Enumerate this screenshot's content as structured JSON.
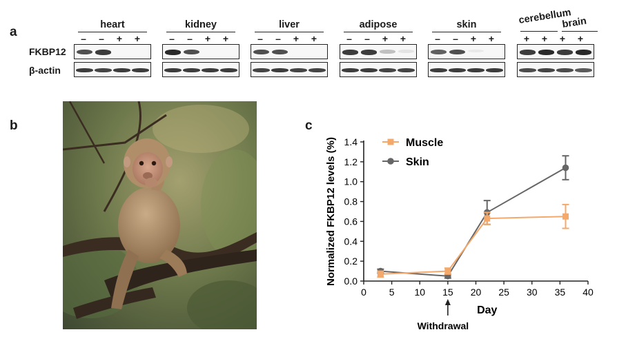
{
  "figure": {
    "panel_labels": {
      "a": "a",
      "b": "b",
      "c": "c"
    }
  },
  "blot": {
    "row_labels": {
      "fkbp12": "FKBP12",
      "actin": "β-actin"
    },
    "tissues": [
      {
        "name": "heart",
        "signs": [
          "–",
          "–",
          "+",
          "+"
        ],
        "fkbp12": [
          0.85,
          0.9,
          0.0,
          0.0
        ],
        "actin": [
          0.8,
          0.75,
          0.8,
          0.8
        ]
      },
      {
        "name": "kidney",
        "signs": [
          "–",
          "–",
          "+",
          "+"
        ],
        "fkbp12": [
          0.95,
          0.85,
          0.0,
          0.0
        ],
        "actin": [
          0.8,
          0.8,
          0.8,
          0.8
        ]
      },
      {
        "name": "liver",
        "signs": [
          "–",
          "–",
          "+",
          "+"
        ],
        "fkbp12": [
          0.85,
          0.85,
          0.0,
          0.0
        ],
        "actin": [
          0.75,
          0.8,
          0.75,
          0.75
        ]
      },
      {
        "name": "adipose",
        "signs": [
          "–",
          "–",
          "+",
          "+"
        ],
        "fkbp12": [
          0.9,
          0.9,
          0.45,
          0.2
        ],
        "actin": [
          0.8,
          0.8,
          0.75,
          0.75
        ]
      },
      {
        "name": "skin",
        "signs": [
          "–",
          "–",
          "+",
          "+"
        ],
        "fkbp12": [
          0.8,
          0.85,
          0.1,
          0.0
        ],
        "actin": [
          0.8,
          0.8,
          0.8,
          0.8
        ]
      },
      {
        "name": "",
        "signs": [
          "+",
          "+",
          "+",
          "+"
        ],
        "fkbp12": [
          0.9,
          0.95,
          0.9,
          0.95
        ],
        "actin": [
          0.7,
          0.75,
          0.7,
          0.6
        ]
      }
    ],
    "sublabels": {
      "cerebellum": "cerebellum",
      "brain": "brain"
    }
  },
  "photo": {
    "subject": "rhesus-macaque-on-branch"
  },
  "chart_data": {
    "type": "line",
    "xlabel": "Day",
    "ylabel": "Normalized FKBP12 levels (%)",
    "xlim": [
      0,
      40
    ],
    "ylim": [
      0.0,
      1.4
    ],
    "xticks": [
      0,
      5,
      10,
      15,
      20,
      25,
      30,
      35,
      40
    ],
    "yticks": [
      0.0,
      0.2,
      0.4,
      0.6,
      0.8,
      1.0,
      1.2,
      1.4
    ],
    "annotation": {
      "text": "Withdrawal",
      "x": 15
    },
    "legend_position": "top-left",
    "series": [
      {
        "name": "Muscle",
        "color": "#f4a96b",
        "marker": "square",
        "x": [
          3,
          15,
          22,
          36
        ],
        "y": [
          0.07,
          0.1,
          0.63,
          0.65
        ],
        "err": [
          0.03,
          0.03,
          0.06,
          0.12
        ]
      },
      {
        "name": "Skin",
        "color": "#666666",
        "marker": "circle",
        "x": [
          3,
          15,
          22,
          36
        ],
        "y": [
          0.1,
          0.05,
          0.69,
          1.14
        ],
        "err": [
          0.02,
          0.02,
          0.12,
          0.12
        ]
      }
    ]
  }
}
